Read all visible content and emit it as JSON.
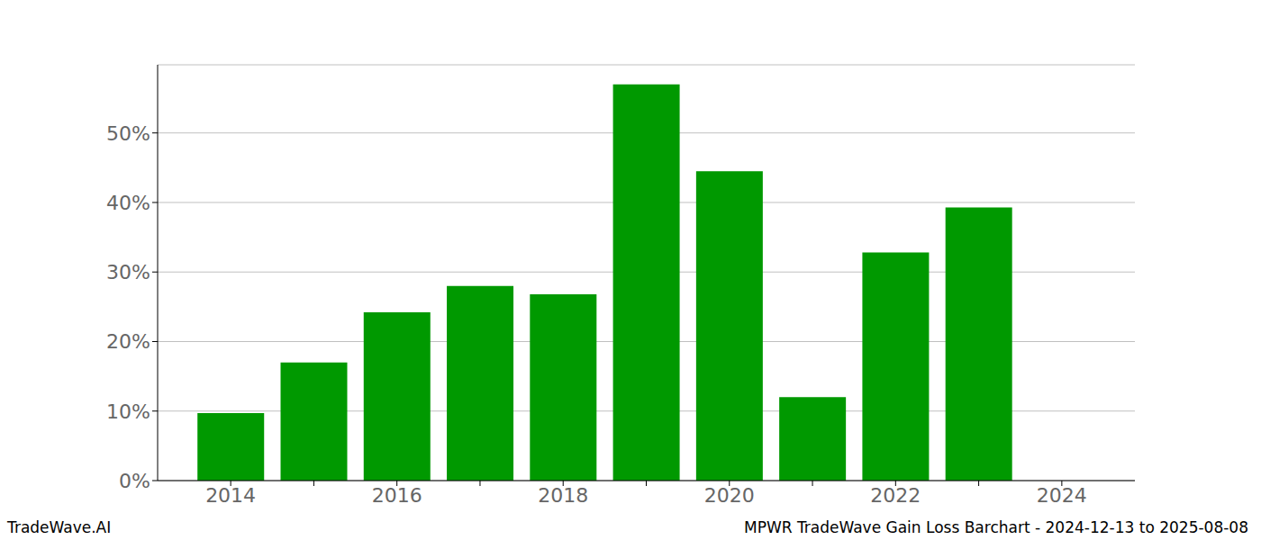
{
  "chart_data": {
    "type": "bar",
    "annotations": [
      "TradeWave.AI",
      "MPWR TradeWave Gain Loss Barchart - 2024-12-13 to 2025-08-08"
    ],
    "categories": [
      "2014",
      null,
      "2016",
      null,
      "2018",
      null,
      "2020",
      null,
      "2022",
      null,
      "2024"
    ],
    "values": [
      9.7,
      17.0,
      24.2,
      28.0,
      26.8,
      57.0,
      44.5,
      12.0,
      32.8,
      39.3,
      null
    ],
    "color": "#009900",
    "ylim": [
      0,
      59.8
    ],
    "yticks": [
      {
        "value": 0,
        "label": "0%"
      },
      {
        "value": 10,
        "label": "10%"
      },
      {
        "value": 20,
        "label": "20%"
      },
      {
        "value": 30,
        "label": "30%"
      },
      {
        "value": 40,
        "label": "40%"
      },
      {
        "value": 50,
        "label": "50%"
      }
    ],
    "grid": true
  }
}
